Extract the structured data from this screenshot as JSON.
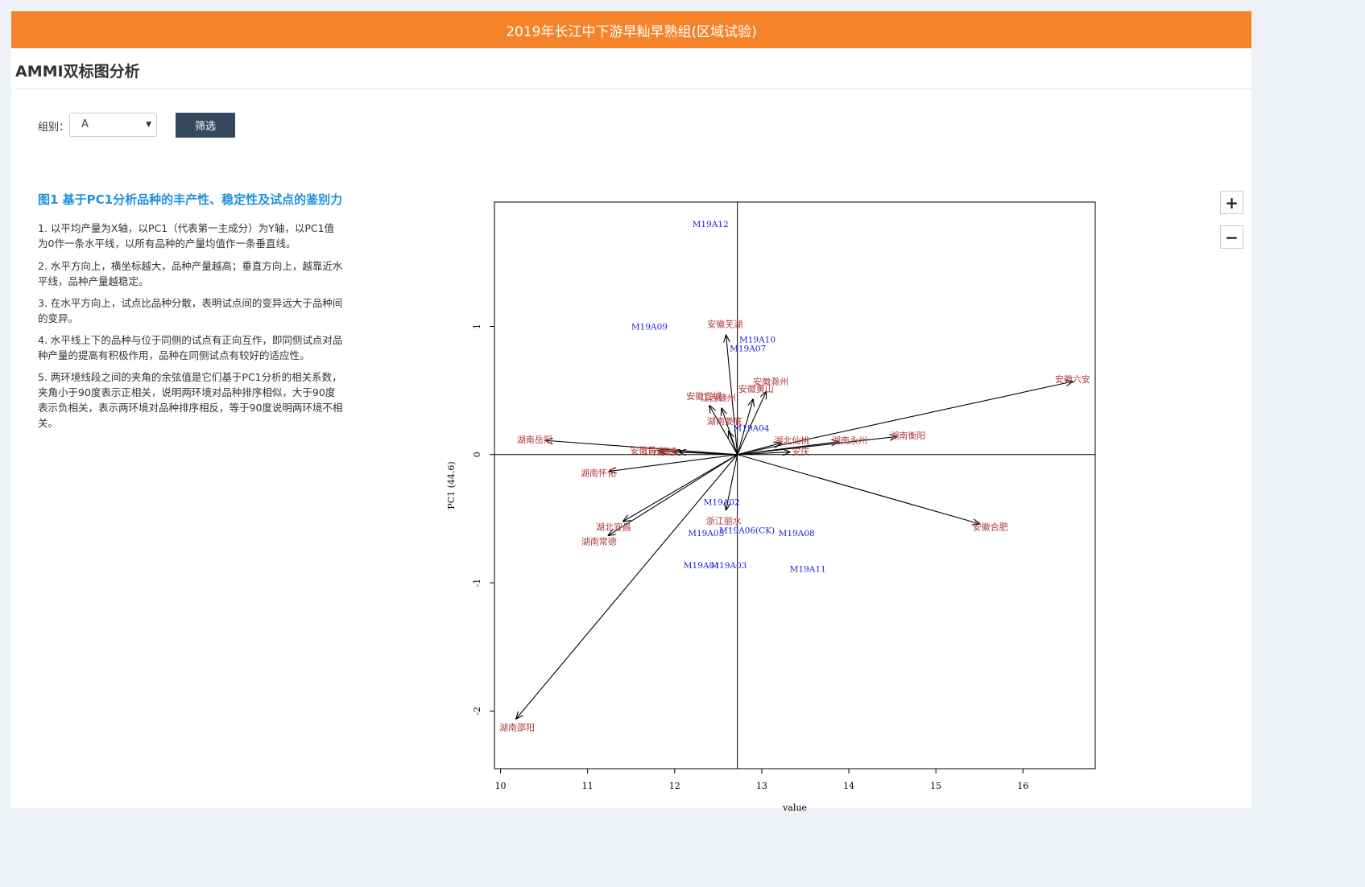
{
  "header": {
    "title": "2019年长江中下游早籼早熟组(区域试验)"
  },
  "section": {
    "title": "AMMI双标图分析"
  },
  "filter": {
    "label": "组别：",
    "value": "A",
    "button": "筛选"
  },
  "figure": {
    "title": "图1 基于PC1分析品种的丰产性、稳定性及试点的鉴别力",
    "notes": [
      "1. 以平均产量为X轴，以PC1（代表第一主成分）为Y轴，以PC1值为0作一条水平线，以所有品种的产量均值作一条垂直线。",
      "2. 水平方向上，横坐标越大，品种产量越高；垂直方向上，越靠近水平线，品种产量越稳定。",
      "3. 在水平方向上，试点比品种分散，表明试点间的变异远大于品种间的变异。",
      "4. 水平线上下的品种与位于同侧的试点有正向互作，即同侧试点对品种产量的提高有积极作用，品种在同侧试点有较好的适应性。",
      "5. 两环境线段之间的夹角的余弦值是它们基于PC1分析的相关系数，夹角小于90度表示正相关，说明两环境对品种排序相似，大于90度表示负相关，表示两环境对品种排序相反，等于90度说明两环境不相关。"
    ]
  },
  "zoom": {
    "in": "+",
    "out": "−"
  },
  "chart_data": {
    "type": "scatter",
    "xlabel": "value",
    "ylabel": "PC1 (44.6)",
    "xlim": [
      9.93,
      16.83
    ],
    "ylim": [
      -2.45,
      1.97
    ],
    "xticks": [
      10,
      11,
      12,
      13,
      14,
      15,
      16
    ],
    "yticks": [
      -2,
      -1,
      0,
      1
    ],
    "origin": {
      "x": 12.72,
      "y": 0
    },
    "colors": {
      "genotype": "#1a1adb",
      "environment": "#b03a3a"
    },
    "genotypes": [
      {
        "name": "M19A12",
        "x": 12.41,
        "y": 1.8
      },
      {
        "name": "M19A09",
        "x": 11.71,
        "y": 1.0
      },
      {
        "name": "M19A10",
        "x": 12.95,
        "y": 0.9
      },
      {
        "name": "M19A07",
        "x": 12.84,
        "y": 0.83
      },
      {
        "name": "M19A04",
        "x": 12.88,
        "y": 0.21
      },
      {
        "name": "M19A02",
        "x": 12.54,
        "y": -0.37
      },
      {
        "name": "M19A05",
        "x": 12.36,
        "y": -0.61
      },
      {
        "name": "M19A06(CK)",
        "x": 12.83,
        "y": -0.59
      },
      {
        "name": "M19A08",
        "x": 13.4,
        "y": -0.61
      },
      {
        "name": "M19A01",
        "x": 12.31,
        "y": -0.86
      },
      {
        "name": "M19A03",
        "x": 12.62,
        "y": -0.86
      },
      {
        "name": "M19A11",
        "x": 13.53,
        "y": -0.89
      }
    ],
    "environments": [
      {
        "name": "安徽芜湖",
        "x": 12.59,
        "y": 0.93,
        "label": "安徽芜湖"
      },
      {
        "name": "安徽六安",
        "x": 16.57,
        "y": 0.57,
        "label": "安徽六安"
      },
      {
        "name": "安徽滁州",
        "x": 13.05,
        "y": 0.49,
        "label": "安徽滁州"
      },
      {
        "name": "安徽宣城",
        "x": 12.4,
        "y": 0.38,
        "label": "安徽宣城"
      },
      {
        "name": "江西赣州",
        "x": 12.54,
        "y": 0.36,
        "label": "江西赣州"
      },
      {
        "name": "安徽黄山",
        "x": 12.9,
        "y": 0.43,
        "label": "安徽黄山"
      },
      {
        "name": "湖南娄底",
        "x": 12.62,
        "y": 0.18,
        "label": "湖南娄底"
      },
      {
        "name": "湖北仙桃",
        "x": 13.22,
        "y": 0.09,
        "label": "湖北仙桃"
      },
      {
        "name": "湖南永州",
        "x": 13.88,
        "y": 0.1,
        "label": "湖南永州"
      },
      {
        "name": "湖南衡阳",
        "x": 14.55,
        "y": 0.14,
        "label": "湖南衡阳"
      },
      {
        "name": "湖南岳阳",
        "x": 10.52,
        "y": 0.11,
        "label": "湖南岳阳"
      },
      {
        "name": "安徽黄山2",
        "x": 11.82,
        "y": 0.03,
        "label": "安徽黄山"
      },
      {
        "name": "江西萍乡",
        "x": 11.98,
        "y": 0.02,
        "label": "江西萍乡"
      },
      {
        "name": "湖北孝感",
        "x": 12.05,
        "y": 0.02,
        "label": "孝感"
      },
      {
        "name": "安徽安庆",
        "x": 13.32,
        "y": 0.02,
        "label": "安庆"
      },
      {
        "name": "湖南怀化",
        "x": 11.25,
        "y": -0.13,
        "label": "湖南怀化"
      },
      {
        "name": "浙江丽水",
        "x": 12.59,
        "y": -0.43,
        "label": "浙江丽水"
      },
      {
        "name": "湖北宜昌",
        "x": 11.41,
        "y": -0.52,
        "label": "湖北宜昌"
      },
      {
        "name": "湖南常德",
        "x": 11.24,
        "y": -0.63,
        "label": "湖南常德"
      },
      {
        "name": "安徽合肥",
        "x": 15.5,
        "y": -0.54,
        "label": "安徽合肥"
      },
      {
        "name": "湖南邵阳",
        "x": 10.18,
        "y": -2.06,
        "label": "湖南邵阳"
      }
    ]
  }
}
